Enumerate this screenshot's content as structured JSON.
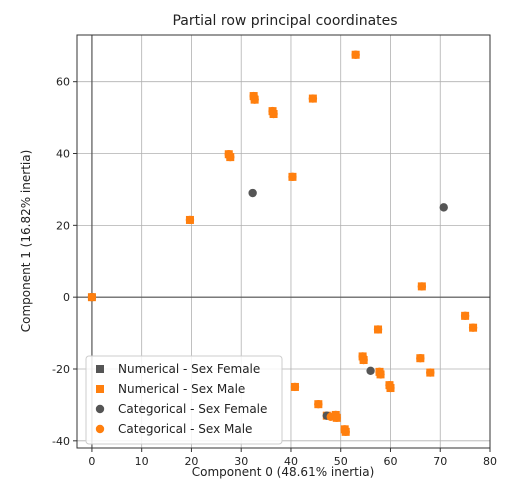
{
  "chart_data": {
    "type": "scatter",
    "title": "Partial row principal coordinates",
    "xlabel": "Component 0 (48.61% inertia)",
    "ylabel": "Component 1 (16.82% inertia)",
    "xlim": [
      -3,
      80
    ],
    "ylim": [
      -42,
      73
    ],
    "x_ticks": [
      0,
      10,
      20,
      30,
      40,
      50,
      60,
      70,
      80
    ],
    "y_ticks": [
      -40,
      -20,
      0,
      20,
      40,
      60
    ],
    "grid": true,
    "reference_lines": {
      "x": 0,
      "y": 0
    },
    "legend_position": "lower-left",
    "colors": {
      "numerical": "#ff7f0e",
      "categorical_female": "#555555",
      "categorical_male": "#ff7f0e",
      "numerical_female": "#555555"
    },
    "series": [
      {
        "name": "Numerical - Sex Female",
        "marker": "square",
        "color": "#555555",
        "points": []
      },
      {
        "name": "Numerical - Sex Male",
        "marker": "square",
        "color": "#ff7f0e",
        "points": [
          [
            0,
            0
          ],
          [
            53,
            67.5
          ],
          [
            32.5,
            56
          ],
          [
            32.7,
            55
          ],
          [
            36.3,
            51.8
          ],
          [
            36.5,
            51
          ],
          [
            44.4,
            55.3
          ],
          [
            27.5,
            39.8
          ],
          [
            27.8,
            39
          ],
          [
            40.3,
            33.5
          ],
          [
            19.7,
            21.5
          ],
          [
            66.3,
            3
          ],
          [
            75,
            -5.2
          ],
          [
            76.6,
            -8.5
          ],
          [
            57.5,
            -9
          ],
          [
            54.4,
            -16.5
          ],
          [
            54.6,
            -17.5
          ],
          [
            66,
            -17
          ],
          [
            57.8,
            -20.8
          ],
          [
            58,
            -21.5
          ],
          [
            68,
            -21
          ],
          [
            59.8,
            -24.5
          ],
          [
            60,
            -25.3
          ],
          [
            40.8,
            -25
          ],
          [
            45.5,
            -29.8
          ],
          [
            47.2,
            -33
          ],
          [
            49,
            -32.8
          ],
          [
            49.2,
            -33.6
          ],
          [
            50.8,
            -36.8
          ],
          [
            51,
            -37.5
          ]
        ]
      },
      {
        "name": "Categorical - Sex Female",
        "marker": "circle",
        "color": "#555555",
        "points": [
          [
            32.3,
            29
          ],
          [
            56,
            -20.5
          ],
          [
            70.7,
            25
          ],
          [
            47.2,
            -33
          ],
          [
            0,
            0
          ]
        ]
      },
      {
        "name": "Categorical - Sex Male",
        "marker": "circle",
        "color": "#ff7f0e",
        "points": [
          [
            0,
            0
          ],
          [
            53,
            67.5
          ],
          [
            32.5,
            56
          ],
          [
            32.7,
            55
          ],
          [
            36.3,
            51.8
          ],
          [
            36.5,
            51
          ],
          [
            44.4,
            55.3
          ],
          [
            27.5,
            39.8
          ],
          [
            27.8,
            39
          ],
          [
            40.3,
            33.5
          ],
          [
            19.7,
            21.5
          ],
          [
            66.3,
            3
          ],
          [
            75,
            -5.2
          ],
          [
            76.6,
            -8.5
          ],
          [
            57.5,
            -9
          ],
          [
            54.4,
            -16.5
          ],
          [
            54.6,
            -17.5
          ],
          [
            66,
            -17
          ],
          [
            57.8,
            -20.8
          ],
          [
            58,
            -21.5
          ],
          [
            68,
            -21
          ],
          [
            59.8,
            -24.5
          ],
          [
            60,
            -25.3
          ],
          [
            40.8,
            -25
          ],
          [
            45.5,
            -29.8
          ],
          [
            48,
            -33.3
          ],
          [
            49,
            -32.8
          ],
          [
            49.2,
            -33.6
          ],
          [
            50.8,
            -36.8
          ],
          [
            51,
            -37.5
          ]
        ]
      }
    ]
  }
}
